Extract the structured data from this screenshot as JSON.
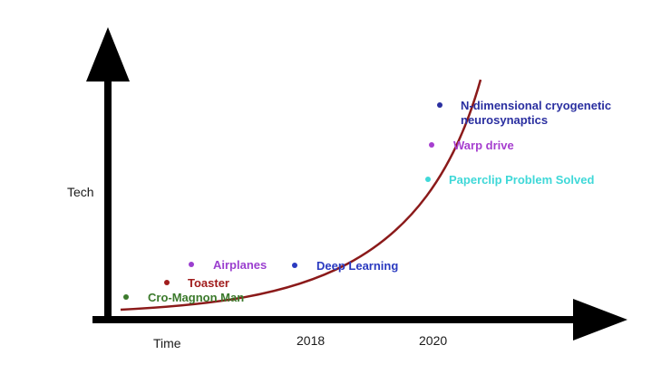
{
  "axes": {
    "y_label": "Tech",
    "x_label": "Time",
    "x_ticks": [
      {
        "label": "2018"
      },
      {
        "label": "2020"
      }
    ]
  },
  "colors": {
    "axis": "#000000",
    "curve": "#8b1a1a",
    "background": "#ffffff"
  },
  "events": [
    {
      "label": "Cro-Magnon Man",
      "color": "#3c7a2c"
    },
    {
      "label": "Toaster",
      "color": "#a11d1d"
    },
    {
      "label": "Airplanes",
      "color": "#9b3fcf"
    },
    {
      "label": "Deep Learning",
      "color": "#2a3ac0"
    },
    {
      "label": "Paperclip Problem Solved",
      "color": "#3fd8d8"
    },
    {
      "label": "Warp drive",
      "color": "#a63fcf"
    },
    {
      "label": "N-dimensional cryogenetic",
      "label_line2": "neurosynaptics",
      "color": "#2a2fa0"
    }
  ]
}
